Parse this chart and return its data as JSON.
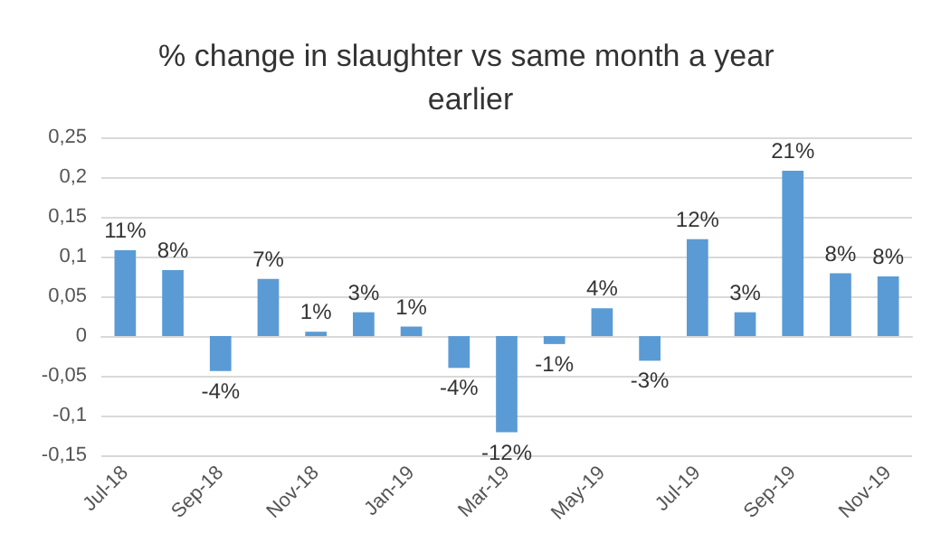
{
  "chart_data": {
    "type": "bar",
    "title": "% change in slaughter vs same month a year earlier",
    "categories": [
      "Jul-18",
      null,
      "Sep-18",
      null,
      "Nov-18",
      null,
      "Jan-19",
      null,
      "Mar-19",
      null,
      "May-19",
      null,
      "Jul-19",
      null,
      "Sep-19",
      null,
      "Nov-19"
    ],
    "values": [
      0.108,
      0.083,
      -0.044,
      0.072,
      0.0055,
      0.03,
      0.012,
      -0.04,
      -0.121,
      -0.01,
      0.035,
      -0.031,
      0.122,
      0.03,
      0.208,
      0.079,
      0.075
    ],
    "value_labels": [
      "11%",
      "8%",
      "-4%",
      "7%",
      "1%",
      "3%",
      "1%",
      "-4%",
      "-12%",
      "-1%",
      "4%",
      "-3%",
      "12%",
      "3%",
      "21%",
      "8%",
      "8%"
    ],
    "color": "#5b9bd5",
    "ylim": [
      -0.15,
      0.25
    ],
    "yticks": [
      {
        "value": -0.15,
        "label": "-0,15"
      },
      {
        "value": -0.1,
        "label": "-0,1"
      },
      {
        "value": -0.05,
        "label": "-0,05"
      },
      0,
      {
        "value": 0.05,
        "label": "0,05"
      },
      {
        "value": 0.1,
        "label": "0,1"
      },
      {
        "value": 0.15,
        "label": "0,15"
      },
      {
        "value": 0.2,
        "label": "0,2"
      },
      {
        "value": 0.25,
        "label": "0,25"
      }
    ],
    "grid": true
  }
}
